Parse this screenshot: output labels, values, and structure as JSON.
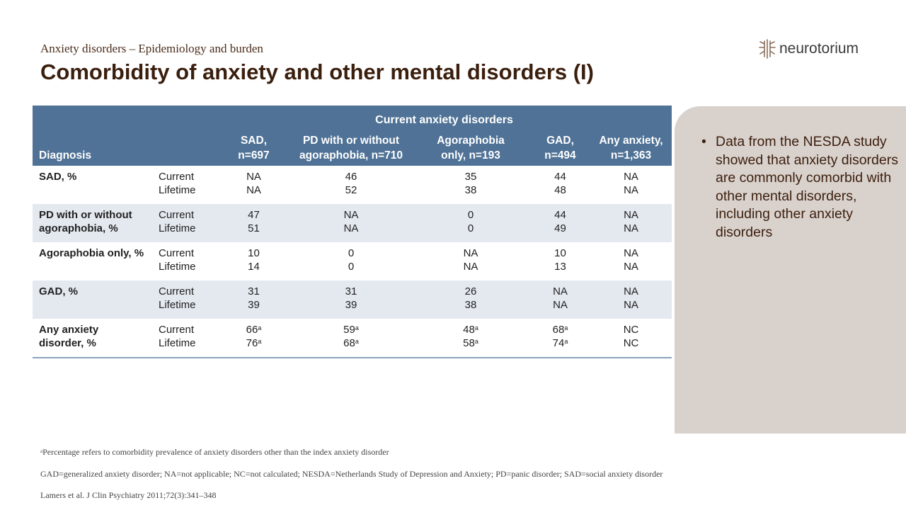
{
  "header": {
    "subtitle": "Anxiety disorders – Epidemiology and burden",
    "title": "Comorbidity of anxiety and other mental disorders (I)",
    "logo_text": "neurotorium"
  },
  "table": {
    "group_header": "Current anxiety disorders",
    "diagnosis_header": "Diagnosis",
    "columns": [
      {
        "line1": "SAD,",
        "line2": "n=697"
      },
      {
        "line1": "PD with or without",
        "line2": "agoraphobia, n=710"
      },
      {
        "line1": "Agoraphobia",
        "line2": "only, n=193"
      },
      {
        "line1": "GAD,",
        "line2": "n=494"
      },
      {
        "line1": "Any anxiety,",
        "line2": "n=1,363"
      }
    ],
    "rows": [
      {
        "diagnosis_line1": "SAD, %",
        "diagnosis_line2": "",
        "status1": "Current",
        "status2": "Lifetime",
        "values": [
          {
            "current": "NA",
            "lifetime": "NA",
            "sup_current": "",
            "sup_lifetime": ""
          },
          {
            "current": "46",
            "lifetime": "52",
            "sup_current": "",
            "sup_lifetime": ""
          },
          {
            "current": "35",
            "lifetime": "38",
            "sup_current": "",
            "sup_lifetime": ""
          },
          {
            "current": "44",
            "lifetime": "48",
            "sup_current": "",
            "sup_lifetime": ""
          },
          {
            "current": "NA",
            "lifetime": "NA",
            "sup_current": "",
            "sup_lifetime": ""
          }
        ]
      },
      {
        "diagnosis_line1": "PD with or without",
        "diagnosis_line2": "agoraphobia, %",
        "status1": "Current",
        "status2": "Lifetime",
        "values": [
          {
            "current": "47",
            "lifetime": "51",
            "sup_current": "",
            "sup_lifetime": ""
          },
          {
            "current": "NA",
            "lifetime": "NA",
            "sup_current": "",
            "sup_lifetime": ""
          },
          {
            "current": "0",
            "lifetime": "0",
            "sup_current": "",
            "sup_lifetime": ""
          },
          {
            "current": "44",
            "lifetime": "49",
            "sup_current": "",
            "sup_lifetime": ""
          },
          {
            "current": "NA",
            "lifetime": "NA",
            "sup_current": "",
            "sup_lifetime": ""
          }
        ]
      },
      {
        "diagnosis_line1": "Agoraphobia only, %",
        "diagnosis_line2": "",
        "status1": "Current",
        "status2": "Lifetime",
        "values": [
          {
            "current": "10",
            "lifetime": "14",
            "sup_current": "",
            "sup_lifetime": ""
          },
          {
            "current": "0",
            "lifetime": "0",
            "sup_current": "",
            "sup_lifetime": ""
          },
          {
            "current": "NA",
            "lifetime": "NA",
            "sup_current": "",
            "sup_lifetime": ""
          },
          {
            "current": "10",
            "lifetime": "13",
            "sup_current": "",
            "sup_lifetime": ""
          },
          {
            "current": "NA",
            "lifetime": "NA",
            "sup_current": "",
            "sup_lifetime": ""
          }
        ]
      },
      {
        "diagnosis_line1": "GAD, %",
        "diagnosis_line2": "",
        "status1": "Current",
        "status2": "Lifetime",
        "values": [
          {
            "current": "31",
            "lifetime": "39",
            "sup_current": "",
            "sup_lifetime": ""
          },
          {
            "current": "31",
            "lifetime": "39",
            "sup_current": "",
            "sup_lifetime": ""
          },
          {
            "current": "26",
            "lifetime": "38",
            "sup_current": "",
            "sup_lifetime": ""
          },
          {
            "current": "NA",
            "lifetime": "NA",
            "sup_current": "",
            "sup_lifetime": ""
          },
          {
            "current": "NA",
            "lifetime": "NA",
            "sup_current": "",
            "sup_lifetime": ""
          }
        ]
      },
      {
        "diagnosis_line1": "Any anxiety",
        "diagnosis_line2": "disorder, %",
        "status1": "Current",
        "status2": "Lifetime",
        "values": [
          {
            "current": "66",
            "lifetime": "76",
            "sup_current": "a",
            "sup_lifetime": "a"
          },
          {
            "current": "59",
            "lifetime": "68",
            "sup_current": "a",
            "sup_lifetime": "a"
          },
          {
            "current": "48",
            "lifetime": "58",
            "sup_current": "a",
            "sup_lifetime": "a"
          },
          {
            "current": "68",
            "lifetime": "74",
            "sup_current": "a",
            "sup_lifetime": "a"
          },
          {
            "current": "NC",
            "lifetime": "NC",
            "sup_current": "",
            "sup_lifetime": ""
          }
        ]
      }
    ]
  },
  "panel": {
    "bullet": "Data from the NESDA study showed that anxiety disorders are commonly comorbid with other mental disorders, including other anxiety disorders"
  },
  "footnotes": {
    "note_marker": "a",
    "note": "Percentage refers to comorbidity prevalence of anxiety disorders other than the index anxiety disorder",
    "abbreviations": "GAD=generalized anxiety disorder; NA=not applicable; NC=not calculated; NESDA=Netherlands Study of Depression and Anxiety; PD=panic disorder; SAD=social anxiety disorder",
    "reference": "Lamers et al. J Clin Psychiatry 2011;72(3):341–348"
  },
  "colors": {
    "table_header": "#4f7296",
    "row_alt": "#e4e9f0",
    "panel": "#d9d1cc",
    "title": "#3b1f0e"
  }
}
